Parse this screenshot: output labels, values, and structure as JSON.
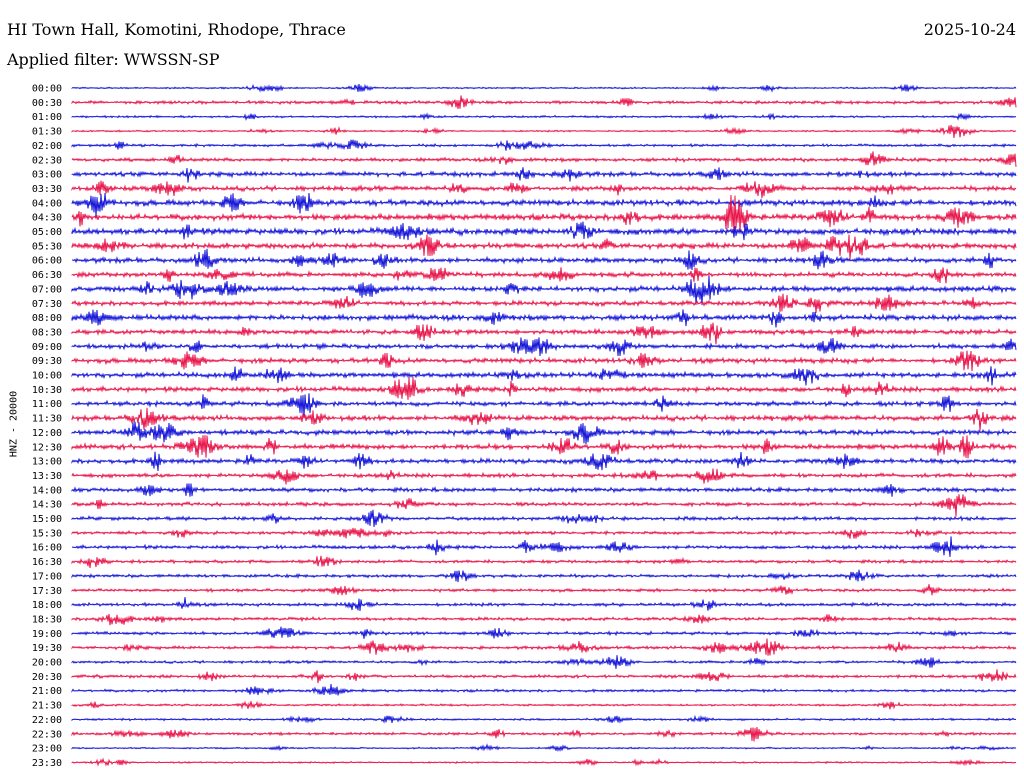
{
  "header": {
    "title": "HI Town Hall, Komotini, Rhodope, Thrace",
    "date": "2025-10-24",
    "filter": "Applied filter: WWSSN-SP"
  },
  "chart_data": {
    "type": "line",
    "ylabel": "HNZ - 20000",
    "tick_labels": [
      "00:00",
      "00:30",
      "01:00",
      "01:30",
      "02:00",
      "02:30",
      "03:00",
      "03:30",
      "04:00",
      "04:30",
      "05:00",
      "05:30",
      "06:00",
      "06:30",
      "07:00",
      "07:30",
      "08:00",
      "08:30",
      "09:00",
      "09:30",
      "10:00",
      "10:30",
      "11:00",
      "11:30",
      "12:00",
      "12:30",
      "13:00",
      "13:30",
      "14:00",
      "14:30",
      "15:00",
      "15:30",
      "16:00",
      "16:30",
      "17:00",
      "17:30",
      "18:00",
      "18:30",
      "19:00",
      "19:30",
      "20:00",
      "20:30",
      "21:00",
      "21:30",
      "22:00",
      "22:30",
      "23:00",
      "23:30"
    ],
    "trace_colors": [
      "#1414d8",
      "#e8144a"
    ],
    "relative_amplitude": [
      0.15,
      0.3,
      0.2,
      0.15,
      0.25,
      0.35,
      0.45,
      0.45,
      0.6,
      0.6,
      0.65,
      0.55,
      0.5,
      0.45,
      0.55,
      0.45,
      0.55,
      0.45,
      0.45,
      0.5,
      0.5,
      0.5,
      0.45,
      0.5,
      0.5,
      0.5,
      0.45,
      0.4,
      0.4,
      0.35,
      0.35,
      0.3,
      0.35,
      0.3,
      0.3,
      0.3,
      0.3,
      0.3,
      0.3,
      0.3,
      0.25,
      0.3,
      0.25,
      0.2,
      0.2,
      0.25,
      0.15,
      0.15
    ]
  }
}
